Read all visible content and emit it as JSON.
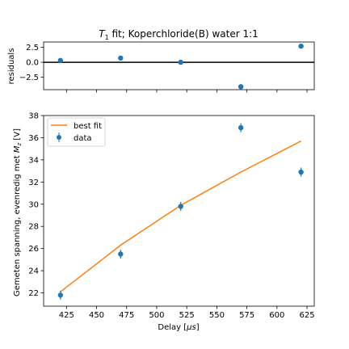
{
  "chart_data": [
    {
      "type": "scatter",
      "panel": "residuals",
      "title_main": "T",
      "title_sub": "1",
      "title_rest": " fit; Koperchloride(B) water 1:1",
      "ylabel": "residuals",
      "xlim": [
        406,
        631
      ],
      "ylim": [
        -4.6,
        3.4
      ],
      "yticks": [
        2.5,
        0.0,
        -2.5
      ],
      "ytick_labels": [
        "2.5",
        "0.0",
        "−2.5"
      ],
      "zero_line": 0,
      "series": [
        {
          "color": "#1f77b4",
          "x": [
            420,
            470,
            520,
            570,
            620
          ],
          "y": [
            0.3,
            0.7,
            0.0,
            -4.1,
            2.7
          ]
        }
      ]
    },
    {
      "type": "line+scatter",
      "panel": "main",
      "xlabel_main": "Delay [",
      "xlabel_unit": "μs",
      "xlabel_end": "]",
      "ylabel_main": "Gemeten spanning, evenredig met ",
      "ylabel_sym": "M",
      "ylabel_sub": "z",
      "ylabel_end": " [V]",
      "xlim": [
        406,
        631
      ],
      "ylim": [
        20.8,
        38.0
      ],
      "xticks": [
        425,
        450,
        475,
        500,
        525,
        550,
        575,
        600,
        625
      ],
      "yticks": [
        22,
        24,
        26,
        28,
        30,
        32,
        34,
        36,
        38
      ],
      "legend": {
        "position": "top-left",
        "entries": [
          "best fit",
          "data"
        ]
      },
      "series": [
        {
          "name": "best fit",
          "kind": "line",
          "color": "#ff7f0e",
          "x": [
            420,
            470,
            520,
            570,
            620
          ],
          "y": [
            22.1,
            26.3,
            29.9,
            32.9,
            35.7
          ]
        },
        {
          "name": "data",
          "kind": "errorbar",
          "color": "#1f77b4",
          "x": [
            420,
            470,
            520,
            570,
            620
          ],
          "y": [
            21.8,
            25.5,
            29.8,
            36.9,
            32.9
          ],
          "yerr": [
            0.4,
            0.4,
            0.4,
            0.4,
            0.4
          ]
        }
      ]
    }
  ]
}
